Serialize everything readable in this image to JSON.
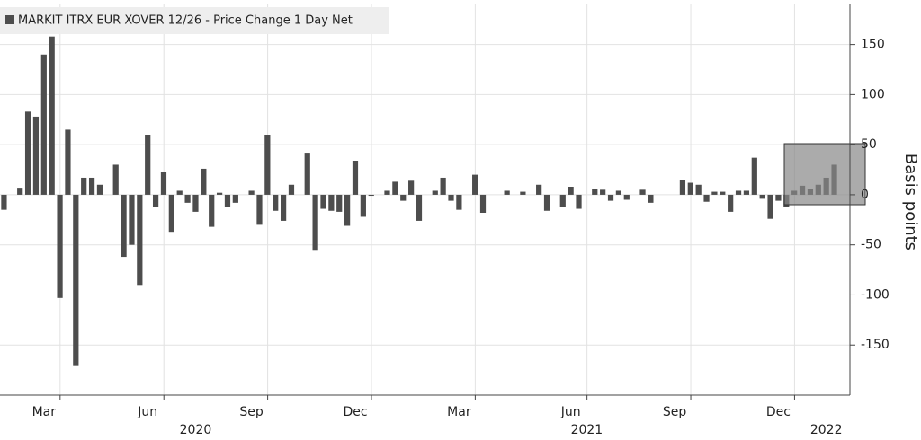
{
  "chart_data": {
    "type": "bar",
    "title": "MARKIT ITRX EUR XOVER 12/26 - Price Change 1 Day Net",
    "y_label": "Basis points",
    "color": "#4d4d4d",
    "ylim": [
      -200,
      190
    ],
    "yticks": [
      -150,
      -100,
      -50,
      0,
      50,
      100,
      150
    ],
    "grid": true,
    "categories": [
      null,
      null,
      null,
      null,
      null,
      "Mar",
      null,
      null,
      null,
      null,
      null,
      null,
      null,
      null,
      null,
      null,
      null,
      null,
      "Jun",
      null,
      null,
      null,
      null,
      null,
      null,
      null,
      null,
      null,
      null,
      null,
      null,
      "Sep",
      null,
      null,
      null,
      null,
      null,
      null,
      null,
      null,
      null,
      null,
      null,
      null,
      "Dec",
      null,
      null,
      null,
      null,
      null,
      null,
      null,
      null,
      null,
      null,
      null,
      null,
      "Mar",
      null,
      null,
      null,
      null,
      null,
      null,
      null,
      null,
      null,
      null,
      null,
      null,
      null,
      "Jun",
      null,
      null,
      null,
      null,
      null,
      null,
      null,
      null,
      null,
      null,
      null,
      null,
      "Sep",
      null,
      null,
      null,
      null,
      null,
      null,
      null,
      null,
      null,
      null,
      null,
      null,
      "Dec",
      null,
      null,
      null,
      null,
      null,
      null,
      null
    ],
    "year_labels": [
      null,
      null,
      null,
      null,
      null,
      null,
      null,
      null,
      null,
      null,
      null,
      null,
      null,
      null,
      null,
      null,
      null,
      null,
      null,
      null,
      null,
      null,
      null,
      null,
      "2020",
      null,
      null,
      null,
      null,
      null,
      null,
      null,
      null,
      null,
      null,
      null,
      null,
      null,
      null,
      null,
      null,
      null,
      null,
      null,
      null,
      null,
      null,
      null,
      null,
      null,
      null,
      null,
      null,
      null,
      null,
      null,
      null,
      null,
      null,
      null,
      null,
      null,
      null,
      null,
      null,
      null,
      null,
      null,
      null,
      null,
      null,
      null,
      null,
      "2021",
      null,
      null,
      null,
      null,
      null,
      null,
      null,
      null,
      null,
      null,
      null,
      null,
      null,
      null,
      null,
      null,
      null,
      null,
      null,
      null,
      null,
      null,
      null,
      null,
      null,
      null,
      null,
      null,
      null,
      "2022",
      null
    ],
    "values": [
      -15,
      0,
      7,
      83,
      78,
      140,
      158,
      -103,
      65,
      -171,
      17,
      17,
      10,
      0,
      30,
      -62,
      -50,
      -90,
      60,
      -12,
      23,
      -37,
      4,
      -8,
      -17,
      26,
      -32,
      2,
      -12,
      -8,
      0,
      4,
      -30,
      60,
      -16,
      -26,
      10,
      0,
      42,
      -55,
      -14,
      -16,
      -17,
      -31,
      34,
      -22,
      -1,
      0,
      4,
      13,
      -6,
      14,
      -26,
      0,
      4,
      17,
      -6,
      -15,
      0,
      20,
      -18,
      0,
      0,
      4,
      0,
      3,
      0,
      10,
      -16,
      0,
      -12,
      8,
      -14,
      0,
      6,
      5,
      -6,
      4,
      -5,
      0,
      5,
      -8,
      0,
      0,
      0,
      15,
      12,
      10,
      -7,
      3,
      3,
      -17,
      4,
      4,
      37,
      -4,
      -24,
      -6,
      -12,
      4,
      9,
      6,
      10,
      17,
      30
    ]
  }
}
